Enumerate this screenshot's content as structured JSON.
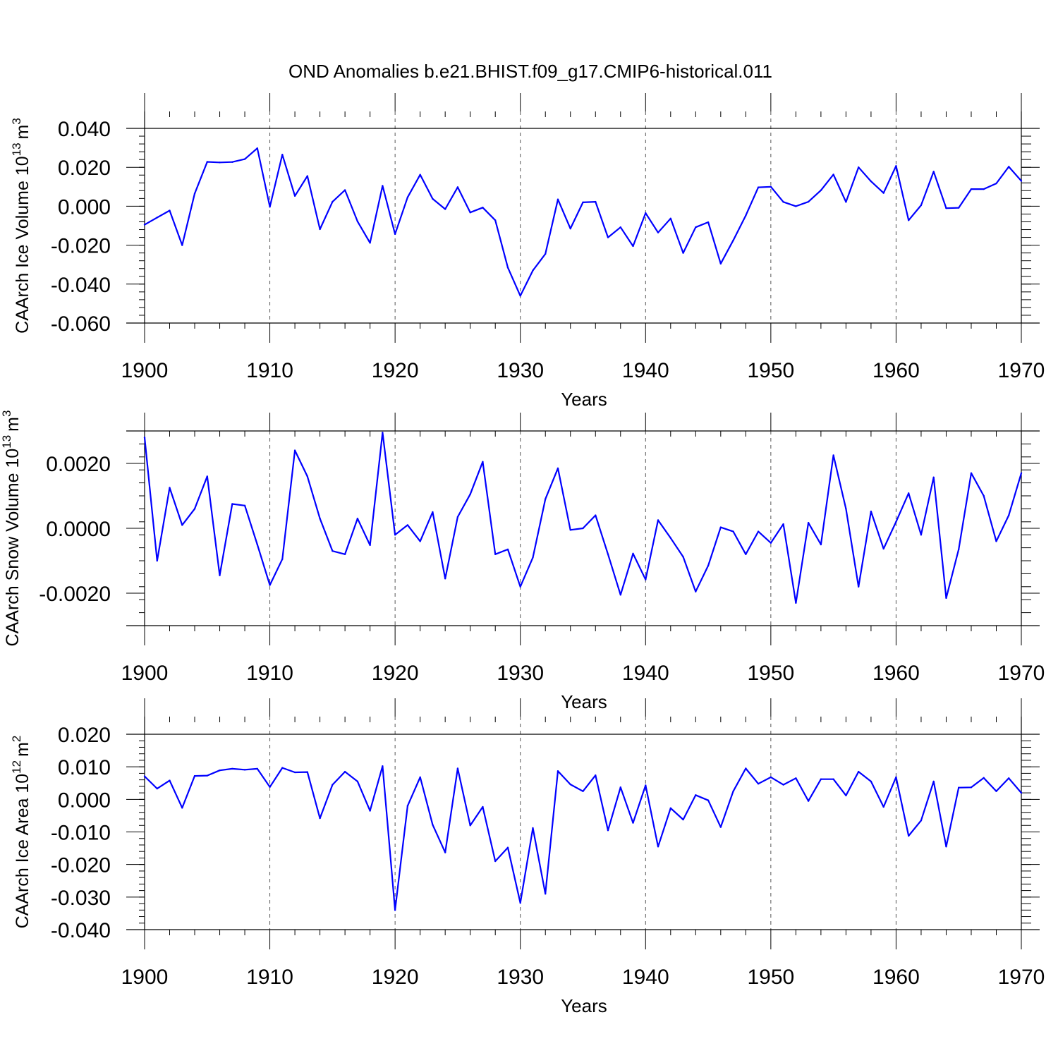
{
  "title": "OND Anomalies b.e21.BHIST.f09_g17.CMIP6-historical.011",
  "colors": {
    "series": "#0000ff",
    "axes": "#000000",
    "grid": "#555555"
  },
  "chart_data": [
    {
      "type": "line",
      "ylabel": "CAArch Ice Volume 10",
      "ylabel_exp": "13",
      "ylabel_unit": "m",
      "ylabel_unit_exp": "3",
      "xlabel": "Years",
      "xlim": [
        1900,
        1970
      ],
      "ylim": [
        -0.06,
        0.04
      ],
      "yticks": [
        0.04,
        0.02,
        0.0,
        -0.02,
        -0.04,
        -0.06
      ],
      "ytick_labels": [
        "0.040",
        "0.020",
        "0.000",
        "-0.020",
        "-0.040",
        "-0.060"
      ],
      "xticks": [
        1900,
        1910,
        1920,
        1930,
        1940,
        1950,
        1960,
        1970
      ],
      "xtick_labels": [
        "1900",
        "1910",
        "1920",
        "1930",
        "1940",
        "1950",
        "1960",
        "1970"
      ],
      "x_start": 1900,
      "series": [
        {
          "name": "CAArch Ice Volume",
          "values": [
            -0.0095,
            -0.0058,
            -0.0022,
            -0.02,
            0.0065,
            0.0228,
            0.0225,
            0.0227,
            0.0242,
            0.0298,
            -0.0003,
            0.0265,
            0.0053,
            0.0155,
            -0.0118,
            0.0023,
            0.0083,
            -0.0078,
            -0.0188,
            0.0105,
            -0.0143,
            0.0046,
            0.0162,
            0.0038,
            -0.0015,
            0.0098,
            -0.0032,
            -0.0007,
            -0.0072,
            -0.0315,
            -0.046,
            -0.033,
            -0.0245,
            0.0035,
            -0.0115,
            0.002,
            0.0023,
            -0.016,
            -0.0108,
            -0.0205,
            -0.0035,
            -0.0135,
            -0.0063,
            -0.024,
            -0.0108,
            -0.0082,
            -0.0295,
            -0.0175,
            -0.0048,
            0.0097,
            0.01,
            0.0022,
            0.0,
            0.0023,
            0.0082,
            0.0163,
            0.0022,
            0.02,
            0.0128,
            0.0068,
            0.0207,
            -0.0072,
            0.0005,
            0.0178,
            -0.001,
            -0.0008,
            0.0088,
            0.0088,
            0.0117,
            0.0203,
            0.013
          ]
        }
      ]
    },
    {
      "type": "line",
      "ylabel": "CAArch Snow Volume 10",
      "ylabel_exp": "13",
      "ylabel_unit": "m",
      "ylabel_unit_exp": "3",
      "xlabel": "Years",
      "xlim": [
        1900,
        1970
      ],
      "ylim": [
        -0.003,
        0.003
      ],
      "yticks": [
        0.002,
        0.0,
        -0.002
      ],
      "ytick_labels": [
        "0.0020",
        "0.0000",
        "-0.0020"
      ],
      "xticks": [
        1900,
        1910,
        1920,
        1930,
        1940,
        1950,
        1960,
        1970
      ],
      "xtick_labels": [
        "1900",
        "1910",
        "1920",
        "1930",
        "1940",
        "1950",
        "1960",
        "1970"
      ],
      "x_start": 1900,
      "series": [
        {
          "name": "CAArch Snow Volume",
          "values": [
            0.0028,
            -0.001,
            0.00125,
            0.0001,
            0.0006,
            0.0016,
            -0.00145,
            0.00075,
            0.0007,
            -0.0005,
            -0.00175,
            -0.00095,
            0.0024,
            0.0016,
            0.0003,
            -0.0007,
            -0.0008,
            0.0003,
            -0.00052,
            0.00295,
            -0.0002,
            0.0001,
            -0.0004,
            0.0005,
            -0.00155,
            0.00035,
            0.00105,
            0.00205,
            -0.0008,
            -0.00065,
            -0.0018,
            -0.0009,
            0.0009,
            0.00185,
            -5e-05,
            0.0,
            0.0004,
            -0.0008,
            -0.00205,
            -0.00078,
            -0.00158,
            0.00025,
            -0.0003,
            -0.00088,
            -0.00195,
            -0.00115,
            3e-05,
            -0.0001,
            -0.0008,
            -0.0001,
            -0.00045,
            0.00013,
            -0.0023,
            0.00017,
            -0.0005,
            0.00225,
            0.0006,
            -0.0018,
            0.00052,
            -0.00063,
            0.0002,
            0.00108,
            -0.0002,
            0.00157,
            -0.00215,
            -0.00065,
            0.0017,
            0.001,
            -0.0004,
            0.0004,
            0.0017
          ]
        }
      ]
    },
    {
      "type": "line",
      "ylabel": "CAArch Ice Area 10",
      "ylabel_exp": "12",
      "ylabel_unit": "m",
      "ylabel_unit_exp": "2",
      "xlabel": "Years",
      "xlim": [
        1900,
        1970
      ],
      "ylim": [
        -0.04,
        0.02
      ],
      "yticks": [
        0.02,
        0.01,
        0.0,
        -0.01,
        -0.02,
        -0.03,
        -0.04
      ],
      "ytick_labels": [
        "0.020",
        "0.010",
        "0.000",
        "-0.010",
        "-0.020",
        "-0.030",
        "-0.040"
      ],
      "xticks": [
        1900,
        1910,
        1920,
        1930,
        1940,
        1950,
        1960,
        1970
      ],
      "xtick_labels": [
        "1900",
        "1910",
        "1920",
        "1930",
        "1940",
        "1950",
        "1960",
        "1970"
      ],
      "x_start": 1900,
      "series": [
        {
          "name": "CAArch Ice Area",
          "values": [
            0.0071,
            0.0033,
            0.0058,
            -0.0026,
            0.0072,
            0.0073,
            0.0089,
            0.0094,
            0.0091,
            0.0094,
            0.0038,
            0.0097,
            0.0083,
            0.0084,
            -0.0058,
            0.0045,
            0.0085,
            0.0055,
            -0.0035,
            0.0102,
            -0.034,
            -0.002,
            0.0068,
            -0.0078,
            -0.0163,
            0.0095,
            -0.008,
            -0.0023,
            -0.019,
            -0.0148,
            -0.0318,
            -0.0088,
            -0.029,
            0.0087,
            0.0046,
            0.0025,
            0.0074,
            -0.0095,
            0.0037,
            -0.0072,
            0.0043,
            -0.0145,
            -0.0027,
            -0.0062,
            0.0013,
            -0.0003,
            -0.0085,
            0.0025,
            0.0095,
            0.0048,
            0.0068,
            0.0045,
            0.0065,
            -0.0005,
            0.0062,
            0.0062,
            0.0012,
            0.0085,
            0.0055,
            -0.0023,
            0.0068,
            -0.0112,
            -0.0065,
            0.0055,
            -0.0145,
            0.0036,
            0.0037,
            0.0066,
            0.0025,
            0.0065,
            0.002
          ]
        }
      ]
    }
  ]
}
